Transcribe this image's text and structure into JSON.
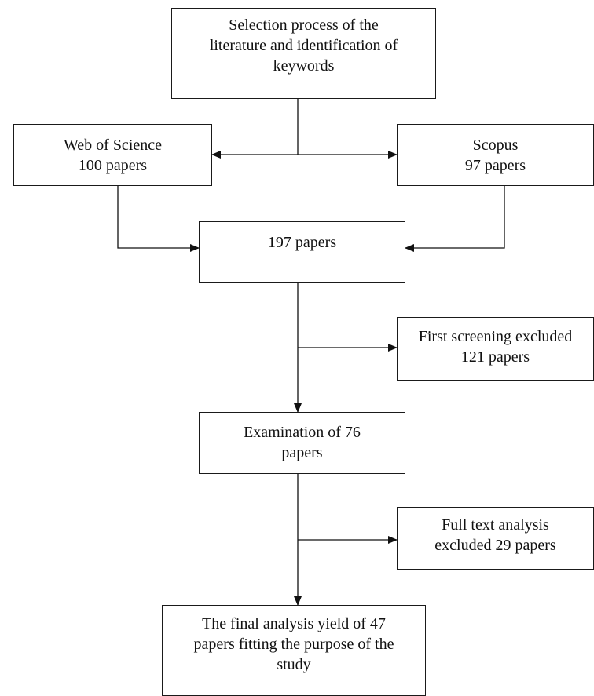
{
  "flowchart": {
    "selection": {
      "lines": [
        "Selection process of the",
        "literature and identification of",
        "keywords"
      ]
    },
    "wos": {
      "lines": [
        "Web of Science",
        "100 papers"
      ]
    },
    "scopus": {
      "lines": [
        "Scopus",
        "97 papers"
      ]
    },
    "combined": {
      "lines": [
        "197 papers"
      ]
    },
    "first_screening": {
      "lines": [
        "First screening excluded",
        "121 papers"
      ]
    },
    "examination": {
      "lines": [
        "Examination of 76",
        "papers"
      ]
    },
    "full_text": {
      "lines": [
        "Full text analysis",
        "excluded 29 papers"
      ]
    },
    "final": {
      "lines": [
        "The final analysis yield of 47",
        "papers fitting the purpose of the",
        "study"
      ]
    }
  }
}
